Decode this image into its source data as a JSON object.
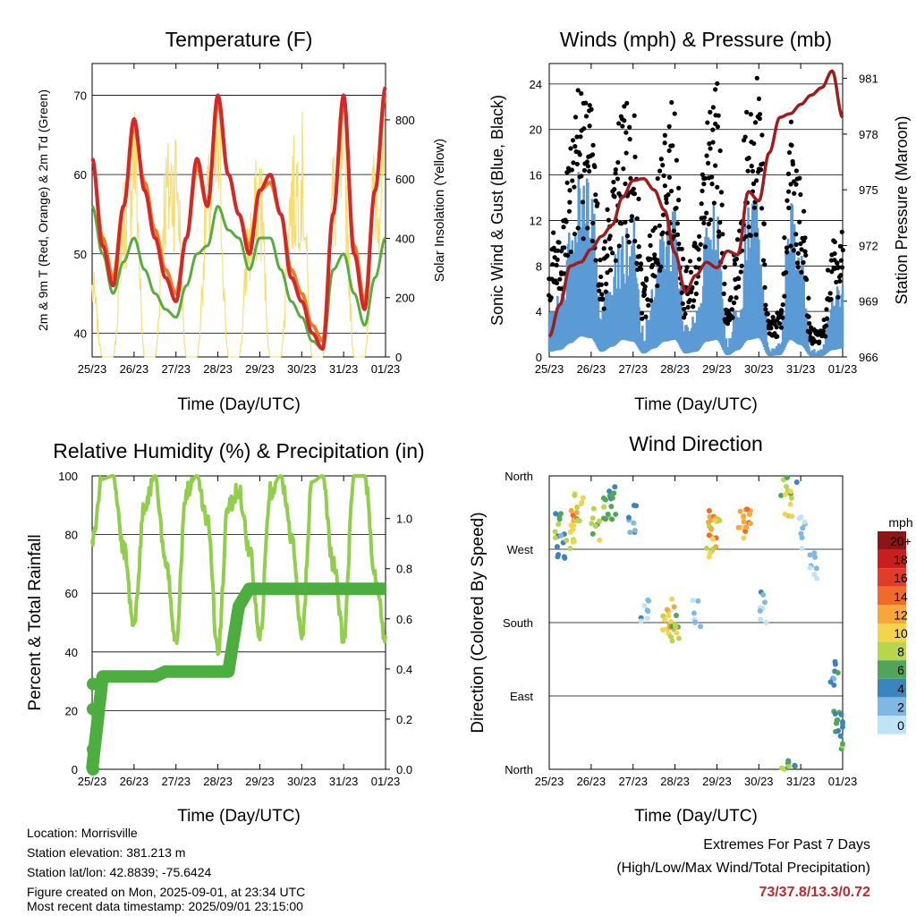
{
  "colors": {
    "t2m": "#d62728",
    "t9m": "#f07a22",
    "td": "#55ad3a",
    "solar": "#f7dd6a",
    "wind": "#5b9bd5",
    "gust": "#000000",
    "pressure": "#a01c1c",
    "rh": "#8fcf4a",
    "rain": "#4cae3e"
  },
  "x_ticks": [
    "25/23",
    "26/23",
    "27/23",
    "28/23",
    "29/23",
    "30/23",
    "31/23",
    "01/23"
  ],
  "temperature": {
    "title": "Temperature (F)",
    "xlabel": "Time (Day/UTC)",
    "ylabel_left": "2m & 9m T (Red, Orange) & 2m Td (Green)",
    "ylabel_right": "Solar Insolation (Yellow)",
    "left_ticks": [
      "40",
      "50",
      "60",
      "70"
    ],
    "right_ticks": [
      "0",
      "200",
      "400",
      "600",
      "800"
    ]
  },
  "winds": {
    "title": "Winds (mph) & Pressure (mb)",
    "xlabel": "Time (Day/UTC)",
    "ylabel_left": "Sonic Wind & Gust (Blue, Black)",
    "ylabel_right": "Station Pressure (Maroon)",
    "left_ticks": [
      "0",
      "4",
      "8",
      "12",
      "16",
      "20",
      "24"
    ],
    "right_ticks": [
      "966",
      "969",
      "972",
      "975",
      "978",
      "981"
    ]
  },
  "humidity": {
    "title": "Relative Humidity (%) & Precipitation (in)",
    "xlabel": "Time (Day/UTC)",
    "ylabel_left": "Percent & Total Rainfall",
    "left_ticks": [
      "0",
      "20",
      "40",
      "60",
      "80",
      "100"
    ],
    "right_ticks": [
      "0.0",
      "0.2",
      "0.4",
      "0.6",
      "0.8",
      "1.0"
    ]
  },
  "direction": {
    "title": "Wind Direction",
    "xlabel": "Time (Day/UTC)",
    "ylabel": "Direction (Colored By Speed)",
    "y_ticks": [
      "North",
      "East",
      "South",
      "West",
      "North"
    ],
    "legend_title": "mph",
    "legend_labels": [
      "20+",
      "18",
      "16",
      "14",
      "12",
      "10",
      "8",
      "6",
      "4",
      "2",
      "0"
    ],
    "legend_colors": [
      "#8e1515",
      "#c81e1e",
      "#e03c28",
      "#f06a2a",
      "#f6a73a",
      "#f3d54c",
      "#b7d64c",
      "#4fa65a",
      "#3a84c0",
      "#7fb8e3",
      "#bfe3f7"
    ]
  },
  "info": {
    "location": "Location: Morrisville",
    "elevation": "Station elevation: 381.213 m",
    "latlon": "Station lat/lon: 42.8839; -75.6424",
    "created": "Figure created on Mon, 2025-09-01, at 23:34 UTC",
    "latest": "Most recent data timestamp: 2025/09/01 23:15:00"
  },
  "extremes": {
    "title": "Extremes For Past 7 Days",
    "subtitle": "(High/Low/Max Wind/Total Precipitation)",
    "values": "73/37.8/13.3/0.72"
  },
  "chart_data": [
    {
      "type": "line",
      "title": "Temperature (F)",
      "xlabel": "Time (Day/UTC)",
      "ylabel": "2m & 9m T (Red, Orange) & 2m Td (Green)",
      "ylabel_right": "Solar Insolation (Yellow)",
      "x_unit": "days since 25/23",
      "ylim": [
        37,
        74
      ],
      "ylim_right": [
        0,
        990
      ],
      "x": [
        0,
        0.25,
        0.5,
        0.75,
        1,
        1.25,
        1.5,
        1.75,
        2,
        2.25,
        2.5,
        2.75,
        3,
        3.25,
        3.5,
        3.75,
        4,
        4.25,
        4.5,
        4.75,
        5,
        5.25,
        5.5,
        5.75,
        6,
        6.25,
        6.5,
        6.75,
        7
      ],
      "series": [
        {
          "name": "2m T",
          "values": [
            62,
            51,
            46,
            56,
            67,
            58,
            52,
            47,
            44,
            52,
            62,
            56,
            70,
            60,
            55,
            50,
            58,
            60,
            55,
            47,
            44,
            40,
            38,
            55,
            70,
            50,
            43,
            58,
            71
          ]
        },
        {
          "name": "9m T",
          "values": [
            62,
            52,
            47,
            56,
            66,
            59,
            53,
            48,
            45,
            52,
            61,
            56,
            69,
            60,
            55,
            51,
            58,
            59,
            55,
            48,
            45,
            41,
            39,
            55,
            69,
            51,
            44,
            58,
            70
          ]
        },
        {
          "name": "2m Td",
          "values": [
            56,
            50,
            45,
            49,
            52,
            48,
            45,
            43,
            42,
            46,
            50,
            51,
            56,
            53,
            52,
            48,
            52,
            52,
            48,
            44,
            42,
            39,
            38,
            48,
            50,
            45,
            41,
            47,
            52
          ]
        },
        {
          "name": "Solar Insolation",
          "axis": "right",
          "values": [
            300,
            0,
            0,
            600,
            900,
            0,
            0,
            700,
            800,
            0,
            0,
            650,
            880,
            0,
            0,
            500,
            700,
            0,
            0,
            700,
            800,
            0,
            0,
            700,
            850,
            0,
            0,
            750,
            800
          ]
        }
      ]
    },
    {
      "type": "scatter",
      "title": "Winds (mph) & Pressure (mb)",
      "xlabel": "Time (Day/UTC)",
      "ylabel": "Sonic Wind & Gust (Blue, Black)",
      "ylabel_right": "Station Pressure (Maroon)",
      "x_unit": "days since 25/23",
      "ylim": [
        0,
        25.8
      ],
      "ylim_right": [
        966,
        981.8
      ],
      "x": [
        0,
        0.25,
        0.5,
        0.75,
        1,
        1.25,
        1.5,
        1.75,
        2,
        2.25,
        2.5,
        2.75,
        3,
        3.25,
        3.5,
        3.75,
        4,
        4.25,
        4.5,
        4.75,
        5,
        5.25,
        5.5,
        5.75,
        6,
        6.25,
        6.5,
        6.75,
        7
      ],
      "series": [
        {
          "name": "Sonic Wind",
          "values": [
            3,
            4,
            8,
            12,
            11,
            3,
            6,
            10,
            9,
            2,
            5,
            9,
            10,
            2,
            3,
            9,
            10,
            1,
            4,
            10,
            11,
            0.5,
            1,
            10,
            7,
            0.5,
            0.5,
            4,
            5
          ]
        },
        {
          "name": "Gust",
          "values": [
            9,
            8,
            14,
            19,
            17,
            7,
            12,
            18,
            17,
            5,
            10,
            16,
            18,
            6,
            8,
            16,
            19,
            3,
            9,
            18,
            19,
            3,
            3,
            16,
            12,
            2,
            2,
            8,
            9
          ]
        },
        {
          "name": "Station Pressure",
          "axis": "right",
          "values": [
            967.1,
            968.8,
            970.9,
            971.1,
            971.8,
            972.5,
            973.1,
            974.6,
            975.5,
            975.6,
            975.0,
            973.9,
            971.6,
            969.5,
            970.4,
            971.1,
            970.8,
            971.7,
            971.5,
            974.9,
            974.4,
            977.0,
            978.9,
            979.1,
            979.6,
            980.1,
            980.5,
            981.4,
            978.9
          ]
        }
      ]
    },
    {
      "type": "line",
      "title": "Relative Humidity (%) & Precipitation (in)",
      "xlabel": "Time (Day/UTC)",
      "ylabel": "Percent & Total Rainfall",
      "x_unit": "days since 25/23",
      "ylim": [
        0,
        100
      ],
      "ylim_right": [
        0,
        1.17
      ],
      "x": [
        0,
        0.25,
        0.5,
        0.75,
        1,
        1.25,
        1.5,
        1.75,
        2,
        2.25,
        2.5,
        2.75,
        3,
        3.25,
        3.5,
        3.75,
        4,
        4.25,
        4.5,
        4.75,
        5,
        5.25,
        5.5,
        5.75,
        6,
        6.25,
        6.5,
        6.75,
        7
      ],
      "series": [
        {
          "name": "Relative Humidity",
          "values": [
            78,
            99,
            100,
            75,
            50,
            90,
            100,
            70,
            45,
            95,
            100,
            85,
            40,
            90,
            95,
            75,
            45,
            95,
            100,
            80,
            45,
            98,
            100,
            70,
            45,
            100,
            100,
            65,
            45
          ]
        },
        {
          "name": "Total Rainfall",
          "axis": "right",
          "values": [
            0,
            0.37,
            0.37,
            0.37,
            0.37,
            0.37,
            0.37,
            0.39,
            0.39,
            0.39,
            0.39,
            0.39,
            0.39,
            0.39,
            0.65,
            0.72,
            0.72,
            0.72,
            0.72,
            0.72,
            0.72,
            0.72,
            0.72,
            0.72,
            0.72,
            0.72,
            0.72,
            0.72,
            0.72
          ]
        }
      ]
    },
    {
      "type": "scatter",
      "title": "Wind Direction",
      "xlabel": "Time (Day/UTC)",
      "ylabel": "Direction (Colored By Speed)",
      "x_unit": "days since 25/23",
      "y_unit": "degrees (0 = North, 90 = East, 180 = South, 270 = West)",
      "ylim": [
        0,
        360
      ],
      "color_scale": {
        "title": "mph",
        "labels": [
          "20+",
          "18",
          "16",
          "14",
          "12",
          "10",
          "8",
          "6",
          "4",
          "2",
          "0"
        ]
      },
      "points": [
        {
          "x": 0.2,
          "y": 300,
          "speed": 6
        },
        {
          "x": 0.3,
          "y": 270,
          "speed": 3
        },
        {
          "x": 0.5,
          "y": 290,
          "speed": 10
        },
        {
          "x": 0.6,
          "y": 310,
          "speed": 12
        },
        {
          "x": 0.7,
          "y": 320,
          "speed": 9
        },
        {
          "x": 1.1,
          "y": 300,
          "speed": 8
        },
        {
          "x": 1.4,
          "y": 320,
          "speed": 7
        },
        {
          "x": 1.5,
          "y": 330,
          "speed": 5
        },
        {
          "x": 2.0,
          "y": 310,
          "speed": 3
        },
        {
          "x": 2.3,
          "y": 200,
          "speed": 2
        },
        {
          "x": 2.8,
          "y": 180,
          "speed": 10
        },
        {
          "x": 2.9,
          "y": 190,
          "speed": 11
        },
        {
          "x": 3.0,
          "y": 170,
          "speed": 8
        },
        {
          "x": 3.5,
          "y": 190,
          "speed": 1
        },
        {
          "x": 3.8,
          "y": 280,
          "speed": 9
        },
        {
          "x": 3.9,
          "y": 300,
          "speed": 12
        },
        {
          "x": 4.0,
          "y": 290,
          "speed": 10
        },
        {
          "x": 4.6,
          "y": 300,
          "speed": 11
        },
        {
          "x": 4.7,
          "y": 310,
          "speed": 13
        },
        {
          "x": 5.1,
          "y": 200,
          "speed": 2
        },
        {
          "x": 5.6,
          "y": 345,
          "speed": 7
        },
        {
          "x": 5.7,
          "y": 330,
          "speed": 8
        },
        {
          "x": 6.0,
          "y": 290,
          "speed": 1
        },
        {
          "x": 6.3,
          "y": 250,
          "speed": 1
        },
        {
          "x": 6.8,
          "y": 120,
          "speed": 4
        },
        {
          "x": 6.9,
          "y": 60,
          "speed": 5
        },
        {
          "x": 7.0,
          "y": 40,
          "speed": 6
        },
        {
          "x": 5.8,
          "y": 5,
          "speed": 6
        }
      ]
    }
  ]
}
